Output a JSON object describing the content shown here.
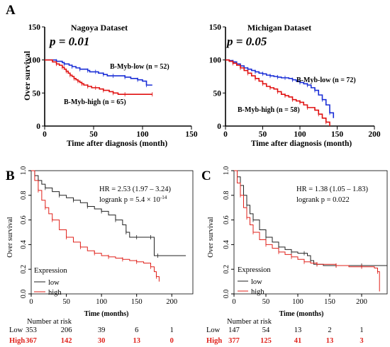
{
  "panels": {
    "a": "A",
    "b": "B",
    "c": "C"
  },
  "chart_data": [
    {
      "id": "A1",
      "type": "line",
      "title": "Nagoya Dataset",
      "pvalue": "p = 0.01",
      "xlabel": "Time after diagnosis (month)",
      "ylabel": "Over survival",
      "xlim": [
        0,
        150
      ],
      "ylim": [
        0,
        150
      ],
      "xticks": [
        "0",
        "50",
        "100",
        "150"
      ],
      "yticks": [
        "0",
        "50",
        "100",
        "150"
      ],
      "series": [
        {
          "name": "B-Myb-low (n = 52)",
          "color": "#1a2ed6",
          "x": [
            0,
            10,
            12,
            18,
            20,
            25,
            28,
            32,
            36,
            40,
            44,
            46,
            52,
            55,
            60,
            64,
            70,
            75,
            82,
            88,
            95,
            100,
            104,
            110
          ],
          "y": [
            100,
            100,
            98,
            96,
            94,
            92,
            90,
            88,
            86,
            86,
            84,
            82,
            82,
            80,
            78,
            76,
            76,
            76,
            74,
            72,
            70,
            68,
            62,
            62
          ]
        },
        {
          "name": "B-Myb-high (n = 65)",
          "color": "#e01010",
          "x": [
            0,
            8,
            12,
            15,
            18,
            20,
            22,
            24,
            26,
            28,
            30,
            32,
            34,
            36,
            38,
            40,
            44,
            48,
            52,
            56,
            60,
            66,
            70,
            75,
            82,
            90,
            110
          ],
          "y": [
            100,
            97,
            94,
            92,
            89,
            86,
            83,
            80,
            77,
            75,
            72,
            70,
            68,
            66,
            64,
            62,
            60,
            58,
            58,
            56,
            54,
            52,
            50,
            48,
            48,
            48,
            48
          ]
        }
      ]
    },
    {
      "id": "A2",
      "type": "line",
      "title": "Michigan Dataset",
      "pvalue": "p = 0.05",
      "xlabel": "Time after diagnosis (month)",
      "ylabel": "",
      "xlim": [
        0,
        200
      ],
      "ylim": [
        0,
        150
      ],
      "xticks": [
        "0",
        "50",
        "100",
        "150",
        "200"
      ],
      "yticks": [
        "0",
        "50",
        "100",
        "150"
      ],
      "series": [
        {
          "name": "B-Myb-low (n = 72)",
          "color": "#1a2ed6",
          "x": [
            0,
            5,
            10,
            15,
            20,
            25,
            30,
            35,
            40,
            45,
            50,
            55,
            60,
            65,
            70,
            75,
            80,
            85,
            90,
            95,
            100,
            105,
            110,
            115,
            120,
            125,
            130,
            135,
            140,
            145
          ],
          "y": [
            100,
            99,
            97,
            94,
            91,
            88,
            86,
            84,
            82,
            80,
            79,
            77,
            76,
            75,
            74,
            73,
            73,
            72,
            70,
            68,
            66,
            64,
            62,
            58,
            54,
            47,
            40,
            32,
            20,
            12
          ]
        },
        {
          "name": "B-Myb-high (n = 58)",
          "color": "#e01010",
          "x": [
            0,
            5,
            10,
            15,
            20,
            25,
            30,
            35,
            40,
            45,
            50,
            55,
            60,
            65,
            70,
            75,
            80,
            85,
            90,
            95,
            100,
            105,
            110,
            120,
            125,
            130,
            135,
            140
          ],
          "y": [
            100,
            98,
            95,
            92,
            88,
            84,
            80,
            76,
            72,
            68,
            64,
            60,
            58,
            56,
            52,
            48,
            46,
            44,
            40,
            38,
            36,
            32,
            28,
            24,
            18,
            12,
            6,
            0
          ]
        }
      ]
    },
    {
      "id": "B",
      "type": "line",
      "xlabel": "Time (months)",
      "ylabel": "Over survival",
      "xlim": [
        0,
        230
      ],
      "ylim": [
        0,
        1.0
      ],
      "xticks": [
        "0",
        "50",
        "100",
        "150",
        "200"
      ],
      "yticks": [
        "0.0",
        "0.2",
        "0.4",
        "0.6",
        "0.8",
        "1.0"
      ],
      "hr": "HR = 2.53 (1.97 – 3.24)",
      "logrank": "logrank p = 5.4 × 10",
      "logrank_exp": "-14",
      "legend_title": "Expression",
      "series": [
        {
          "name": "low",
          "color": "#222222",
          "x": [
            0,
            5,
            10,
            15,
            20,
            30,
            40,
            50,
            60,
            70,
            80,
            90,
            100,
            110,
            120,
            130,
            135,
            140,
            150,
            160,
            170,
            175,
            180,
            220
          ],
          "y": [
            1.0,
            0.96,
            0.92,
            0.89,
            0.86,
            0.83,
            0.8,
            0.78,
            0.76,
            0.74,
            0.71,
            0.69,
            0.67,
            0.64,
            0.6,
            0.56,
            0.5,
            0.46,
            0.46,
            0.46,
            0.46,
            0.31,
            0.31,
            0.31
          ]
        },
        {
          "name": "high",
          "color": "#e0201a",
          "x": [
            0,
            5,
            10,
            15,
            20,
            25,
            30,
            40,
            50,
            60,
            70,
            80,
            90,
            100,
            110,
            120,
            130,
            140,
            150,
            160,
            170,
            175,
            178,
            182
          ],
          "y": [
            1.0,
            0.92,
            0.84,
            0.76,
            0.7,
            0.65,
            0.6,
            0.52,
            0.46,
            0.42,
            0.38,
            0.35,
            0.33,
            0.31,
            0.3,
            0.29,
            0.28,
            0.27,
            0.26,
            0.25,
            0.22,
            0.18,
            0.14,
            0.1
          ]
        }
      ],
      "risk": {
        "title": "Number at risk",
        "rows": [
          {
            "label": "Low",
            "values": [
              "353",
              "206",
              "39",
              "6",
              "1"
            ]
          },
          {
            "label": "High",
            "values": [
              "367",
              "142",
              "30",
              "13",
              "0"
            ]
          }
        ]
      }
    },
    {
      "id": "C",
      "type": "line",
      "xlabel": "Time (months)",
      "ylabel": "Over survival",
      "xlim": [
        0,
        240
      ],
      "ylim": [
        0,
        1.0
      ],
      "xticks": [
        "0",
        "50",
        "100",
        "150",
        "200"
      ],
      "yticks": [
        "0.0",
        "0.2",
        "0.4",
        "0.6",
        "0.8",
        "1.0"
      ],
      "hr": "HR = 1.38 (1.05 – 1.83)",
      "logrank": "logrank p = 0.022",
      "legend_title": "Expression",
      "series": [
        {
          "name": "low",
          "color": "#222222",
          "x": [
            0,
            5,
            10,
            15,
            20,
            25,
            30,
            40,
            50,
            60,
            70,
            80,
            90,
            100,
            110,
            115,
            120,
            125,
            130,
            140,
            160,
            180,
            200,
            240
          ],
          "y": [
            1.0,
            0.95,
            0.88,
            0.8,
            0.72,
            0.65,
            0.6,
            0.52,
            0.46,
            0.42,
            0.38,
            0.36,
            0.34,
            0.33,
            0.33,
            0.31,
            0.27,
            0.24,
            0.24,
            0.23,
            0.23,
            0.23,
            0.23,
            0.23
          ]
        },
        {
          "name": "high",
          "color": "#e0201a",
          "x": [
            0,
            5,
            10,
            15,
            20,
            25,
            30,
            40,
            50,
            60,
            70,
            80,
            90,
            100,
            110,
            120,
            130,
            140,
            160,
            180,
            200,
            220,
            225,
            228
          ],
          "y": [
            1.0,
            0.9,
            0.8,
            0.7,
            0.62,
            0.56,
            0.5,
            0.44,
            0.4,
            0.37,
            0.34,
            0.32,
            0.3,
            0.28,
            0.26,
            0.25,
            0.24,
            0.24,
            0.23,
            0.22,
            0.22,
            0.21,
            0.18,
            0.02
          ]
        }
      ],
      "risk": {
        "title": "Number at risk",
        "rows": [
          {
            "label": "Low",
            "values": [
              "147",
              "54",
              "13",
              "2",
              "1"
            ]
          },
          {
            "label": "High",
            "values": [
              "377",
              "125",
              "41",
              "13",
              "3"
            ]
          }
        ]
      }
    }
  ]
}
